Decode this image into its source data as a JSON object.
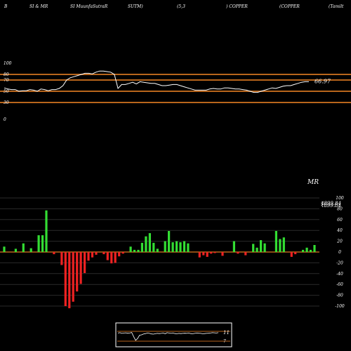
{
  "header": {
    "items": [
      "B",
      "SI & MR",
      "SI MuunfaSutraR",
      "SUTM)",
      "(5,3",
      ") COPPER",
      "(COPPER",
      "(Tamilt"
    ]
  },
  "colors": {
    "background": "#000000",
    "band": "#b8651b",
    "rsi_line": "#ffffff",
    "positive": "#33dd33",
    "negative": "#ee2222",
    "zero_line": "#b8651b"
  },
  "chart_data": [
    {
      "type": "line",
      "title": "",
      "ylim": [
        0,
        100
      ],
      "y_ticks": [
        "100",
        "80",
        "70",
        "50",
        "30",
        "0"
      ],
      "y_tick_values": [
        100,
        80,
        70,
        50,
        30,
        0
      ],
      "reference_lines": [
        80,
        70,
        50,
        30
      ],
      "last_value_label": "66.97",
      "series": [
        {
          "values": [
            56,
            54,
            53,
            53,
            50,
            51,
            51,
            53,
            52,
            50,
            54,
            53,
            51,
            53,
            53,
            55,
            60,
            70,
            74,
            76,
            78,
            80,
            82,
            82,
            81,
            84,
            86,
            86,
            85,
            84,
            80,
            55,
            62,
            62,
            64,
            66,
            63,
            67,
            66,
            65,
            64,
            64,
            62,
            60,
            60,
            61,
            62,
            62,
            60,
            58,
            56,
            54,
            52,
            52,
            52,
            52,
            54,
            55,
            54,
            54,
            56,
            56,
            55,
            54,
            54,
            53,
            52,
            50,
            48,
            48,
            50,
            52,
            54,
            56,
            55,
            57,
            59,
            60,
            60,
            62,
            64,
            66,
            67,
            67
          ]
        }
      ]
    },
    {
      "type": "bar",
      "title": "MR",
      "ylim": [
        -100,
        100
      ],
      "y_ticks": [
        "100",
        "80",
        "60",
        "40",
        "20",
        "0",
        "-20",
        "-40",
        "-60",
        "-80",
        "-100"
      ],
      "y_tick_values": [
        100,
        80,
        60,
        40,
        20,
        0,
        -20,
        -40,
        -60,
        -80,
        -100
      ],
      "value_labels": [
        "₹899.84",
        "₹899.84"
      ],
      "series": [
        {
          "values": [
            10,
            0,
            0,
            6,
            0,
            16,
            0,
            7,
            0,
            31,
            31,
            77,
            0,
            -4,
            0,
            -24,
            -100,
            -104,
            -92,
            -73,
            -59,
            -39,
            -16,
            -10,
            -5,
            0,
            -4,
            -15,
            -21,
            -20,
            -8,
            -3,
            0,
            10,
            4,
            4,
            17,
            29,
            35,
            17,
            6,
            0,
            20,
            39,
            18,
            20,
            18,
            20,
            16,
            0,
            0,
            -10,
            -6,
            -9,
            -3,
            -2,
            0,
            -7,
            0,
            0,
            20,
            -3,
            0,
            -6,
            0,
            15,
            8,
            22,
            16,
            0,
            0,
            39,
            24,
            27,
            0,
            -9,
            -4,
            0,
            4,
            8,
            4,
            13
          ]
        }
      ]
    },
    {
      "type": "line",
      "title": "",
      "value_labels": [
        "11",
        "7"
      ],
      "series": [
        {
          "values": [
            60,
            62,
            58,
            60,
            61,
            59,
            60,
            63,
            40,
            20,
            30,
            48,
            50,
            55,
            57,
            60,
            58,
            55,
            54,
            56,
            58,
            57,
            58,
            60,
            56,
            62,
            60,
            58,
            60,
            57,
            56,
            58,
            57,
            58,
            59,
            58,
            60,
            57,
            56,
            58,
            60,
            59,
            58,
            56,
            57,
            58,
            59,
            60,
            62,
            61,
            60,
            62
          ]
        }
      ]
    }
  ]
}
